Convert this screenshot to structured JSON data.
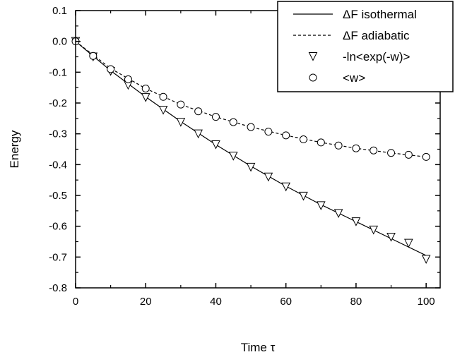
{
  "chart_data": {
    "type": "line",
    "xlabel": "Time τ",
    "ylabel": "Energy",
    "xlim": [
      0,
      104
    ],
    "ylim": [
      -0.8,
      0.1
    ],
    "x_ticks": [
      "0",
      "20",
      "40",
      "60",
      "80",
      "100"
    ],
    "y_ticks": [
      "0.1",
      "0.0",
      "-0.1",
      "-0.2",
      "-0.3",
      "-0.4",
      "-0.5",
      "-0.6",
      "-0.7",
      "-0.8"
    ],
    "grid": false,
    "legend_position": "top-right",
    "series": [
      {
        "name": "ΔF isothermal",
        "style": "solid-line",
        "x": [
          0,
          10,
          20,
          30,
          40,
          50,
          60,
          70,
          80,
          90,
          100
        ],
        "y": [
          0.0,
          -0.095,
          -0.18,
          -0.26,
          -0.335,
          -0.405,
          -0.47,
          -0.53,
          -0.585,
          -0.64,
          -0.695
        ]
      },
      {
        "name": "ΔF adiabatic",
        "style": "dashed-line",
        "x": [
          0,
          10,
          20,
          30,
          40,
          50,
          60,
          70,
          80,
          90,
          100
        ],
        "y": [
          0.0,
          -0.088,
          -0.153,
          -0.205,
          -0.245,
          -0.278,
          -0.305,
          -0.328,
          -0.347,
          -0.362,
          -0.375
        ]
      },
      {
        "name": "-ln<exp(-w)>",
        "style": "triangle-markers",
        "x": [
          0,
          5,
          10,
          15,
          20,
          25,
          30,
          35,
          40,
          45,
          50,
          55,
          60,
          65,
          70,
          75,
          80,
          85,
          90,
          95,
          100
        ],
        "y": [
          0.0,
          -0.05,
          -0.097,
          -0.142,
          -0.182,
          -0.223,
          -0.262,
          -0.3,
          -0.335,
          -0.372,
          -0.408,
          -0.44,
          -0.472,
          -0.502,
          -0.533,
          -0.558,
          -0.585,
          -0.612,
          -0.635,
          -0.655,
          -0.707
        ]
      },
      {
        "name": "<w>",
        "style": "circle-markers",
        "x": [
          0,
          5,
          10,
          15,
          20,
          25,
          30,
          35,
          40,
          45,
          50,
          55,
          60,
          65,
          70,
          75,
          80,
          85,
          90,
          95,
          100
        ],
        "y": [
          0.0,
          -0.047,
          -0.09,
          -0.123,
          -0.153,
          -0.18,
          -0.205,
          -0.227,
          -0.245,
          -0.262,
          -0.278,
          -0.293,
          -0.305,
          -0.318,
          -0.328,
          -0.338,
          -0.347,
          -0.354,
          -0.362,
          -0.368,
          -0.375
        ]
      }
    ]
  },
  "colors": {
    "ink": "#000000",
    "background": "#ffffff",
    "marker_fill": "#ffffff"
  }
}
